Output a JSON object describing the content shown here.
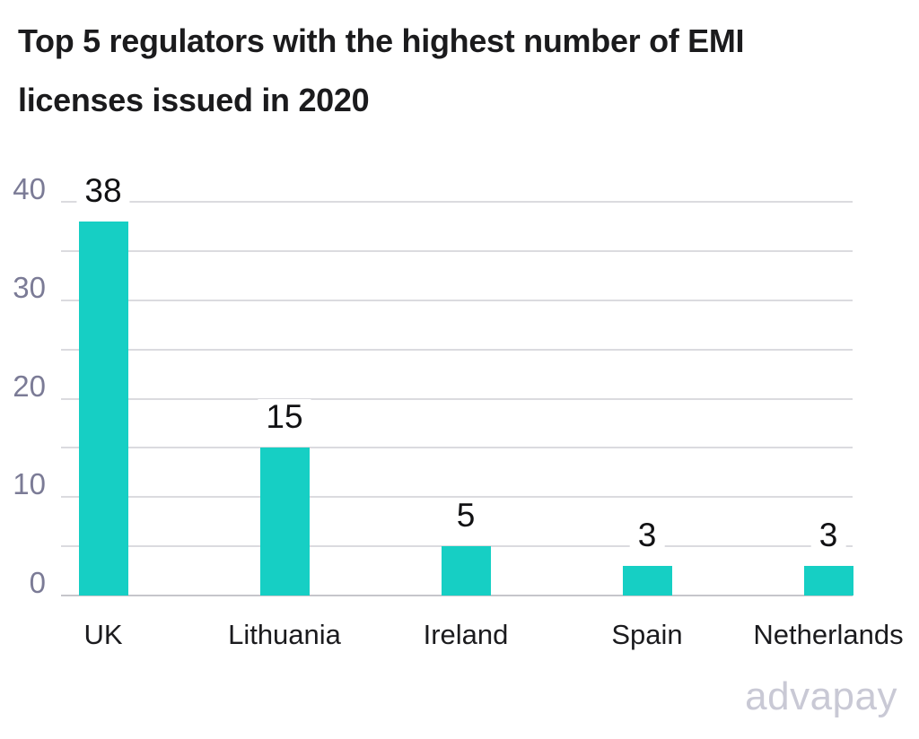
{
  "header": {
    "title_line1": "Top 5 regulators with the highest number of EMI",
    "title_line2": "licenses issued in 2020"
  },
  "chart_data": {
    "type": "bar",
    "title": "Top 5 regulators with the highest number of EMI licenses issued in 2020",
    "categories": [
      "UK",
      "Lithuania",
      "Ireland",
      "Spain",
      "Netherlands"
    ],
    "values": [
      38,
      15,
      5,
      3,
      3
    ],
    "bar_value_labels": [
      "38",
      "15",
      "5",
      "3",
      "3"
    ],
    "ylim": [
      0,
      40
    ],
    "y_tick_interval": 10,
    "y_tick_labels": [
      "0",
      "10",
      "20",
      "30",
      "40"
    ],
    "gridline_interval": 5,
    "grid": "on",
    "legend": "none",
    "xlabel": "",
    "ylabel": "",
    "colors": {
      "bar": "#16CFC4",
      "value_label": "#111113",
      "category_label": "#1B1B1E",
      "y_tick_label": "#7B7B96",
      "gridline": "#DBDBDF",
      "baseline": "#C6C6CB",
      "background": "#FFFFFF"
    }
  },
  "footer": {
    "brand": "advapay"
  }
}
